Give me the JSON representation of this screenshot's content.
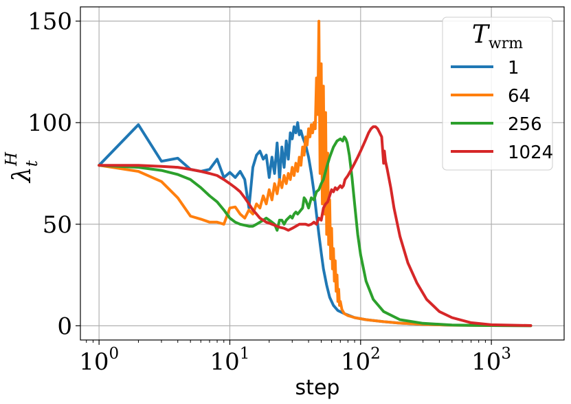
{
  "chart_data": {
    "type": "line",
    "xscale": "log",
    "xlabel": "step",
    "ylabel": "λ",
    "ylabel_sup": "H",
    "ylabel_sub": "t",
    "xlim": [
      0.72,
      3600
    ],
    "ylim": [
      -7,
      157
    ],
    "grid": true,
    "x_ticks": [
      {
        "base": "10",
        "exp": "0",
        "value": 1
      },
      {
        "base": "10",
        "exp": "1",
        "value": 10
      },
      {
        "base": "10",
        "exp": "2",
        "value": 100
      },
      {
        "base": "10",
        "exp": "3",
        "value": 1000
      }
    ],
    "y_ticks": [
      {
        "label": "0",
        "value": 0
      },
      {
        "label": "50",
        "value": 50
      },
      {
        "label": "100",
        "value": 100
      },
      {
        "label": "150",
        "value": 150
      }
    ],
    "legend": {
      "title": "T",
      "title_sub": "wrm",
      "placement": "upper right"
    },
    "series": [
      {
        "name": "1",
        "color": "#1f77b4",
        "points": [
          [
            1,
            79
          ],
          [
            2,
            99
          ],
          [
            3,
            81
          ],
          [
            4,
            82.5
          ],
          [
            5,
            77
          ],
          [
            6,
            76
          ],
          [
            7,
            77
          ],
          [
            8,
            82
          ],
          [
            9,
            73
          ],
          [
            10,
            75.5
          ],
          [
            11,
            73
          ],
          [
            12,
            76
          ],
          [
            13,
            72
          ],
          [
            14,
            58
          ],
          [
            15,
            78
          ],
          [
            16,
            84
          ],
          [
            17,
            86
          ],
          [
            18,
            82
          ],
          [
            19,
            84
          ],
          [
            20,
            73
          ],
          [
            21,
            83
          ],
          [
            22,
            75
          ],
          [
            23,
            90
          ],
          [
            24,
            72
          ],
          [
            25,
            88
          ],
          [
            26,
            78
          ],
          [
            27,
            91
          ],
          [
            28,
            82
          ],
          [
            29,
            95
          ],
          [
            30,
            92
          ],
          [
            31,
            98
          ],
          [
            32,
            95
          ],
          [
            33,
            100
          ],
          [
            34,
            94
          ],
          [
            35,
            96
          ],
          [
            36,
            93
          ],
          [
            38,
            89
          ],
          [
            40,
            83
          ],
          [
            42,
            75
          ],
          [
            44,
            66
          ],
          [
            46,
            55
          ],
          [
            48,
            45
          ],
          [
            50,
            36
          ],
          [
            52,
            28
          ],
          [
            55,
            20
          ],
          [
            58,
            14
          ],
          [
            62,
            10
          ],
          [
            67,
            7.5
          ],
          [
            75,
            6
          ],
          [
            90,
            4
          ],
          [
            110,
            3
          ],
          [
            150,
            2
          ],
          [
            200,
            1.3
          ],
          [
            300,
            0.7
          ],
          [
            500,
            0.3
          ],
          [
            1000,
            0.1
          ],
          [
            2000,
            0.04
          ]
        ]
      },
      {
        "name": "64",
        "color": "#ff7f0e",
        "points": [
          [
            1,
            79
          ],
          [
            2,
            76
          ],
          [
            3,
            71
          ],
          [
            4,
            63
          ],
          [
            5,
            54
          ],
          [
            6,
            52.5
          ],
          [
            7,
            51
          ],
          [
            8,
            51
          ],
          [
            9,
            50
          ],
          [
            10,
            58
          ],
          [
            11,
            58.5
          ],
          [
            12,
            55
          ],
          [
            13,
            53
          ],
          [
            14,
            57
          ],
          [
            15,
            55
          ],
          [
            16,
            60
          ],
          [
            17,
            58
          ],
          [
            18,
            64
          ],
          [
            19,
            60
          ],
          [
            20,
            67
          ],
          [
            21,
            62
          ],
          [
            22,
            70
          ],
          [
            23,
            65
          ],
          [
            24,
            72
          ],
          [
            25,
            68
          ],
          [
            26,
            74
          ],
          [
            27,
            70
          ],
          [
            28,
            75
          ],
          [
            29,
            72
          ],
          [
            30,
            78
          ],
          [
            31,
            74
          ],
          [
            32,
            80
          ],
          [
            33,
            76
          ],
          [
            34,
            83
          ],
          [
            35,
            79
          ],
          [
            36,
            88
          ],
          [
            37,
            84
          ],
          [
            38,
            93
          ],
          [
            39,
            89
          ],
          [
            40,
            97
          ],
          [
            41,
            93
          ],
          [
            42,
            99
          ],
          [
            43,
            95
          ],
          [
            44,
            100
          ],
          [
            45,
            97
          ],
          [
            46,
            122
          ],
          [
            47,
            104
          ],
          [
            48,
            150
          ],
          [
            49,
            75
          ],
          [
            50,
            129
          ],
          [
            51,
            60
          ],
          [
            52,
            118
          ],
          [
            53,
            55
          ],
          [
            54,
            105
          ],
          [
            55,
            45
          ],
          [
            56,
            85
          ],
          [
            57,
            40
          ],
          [
            58,
            62
          ],
          [
            59,
            33
          ],
          [
            60,
            48
          ],
          [
            61,
            28
          ],
          [
            62,
            38
          ],
          [
            63,
            22
          ],
          [
            64,
            32
          ],
          [
            65,
            17
          ],
          [
            66,
            25
          ],
          [
            67,
            12
          ],
          [
            68,
            18
          ],
          [
            69,
            10
          ],
          [
            70,
            12
          ],
          [
            72,
            8
          ],
          [
            75,
            6
          ],
          [
            80,
            5
          ],
          [
            90,
            4
          ],
          [
            110,
            3
          ],
          [
            150,
            2
          ],
          [
            200,
            1.3
          ],
          [
            300,
            0.7
          ],
          [
            500,
            0.3
          ],
          [
            1000,
            0.1
          ],
          [
            2000,
            0.04
          ]
        ]
      },
      {
        "name": "256",
        "color": "#2ca02c",
        "points": [
          [
            1,
            79
          ],
          [
            2,
            78
          ],
          [
            3,
            76.5
          ],
          [
            4,
            74.5
          ],
          [
            5,
            72
          ],
          [
            6,
            68
          ],
          [
            7,
            64
          ],
          [
            8,
            61
          ],
          [
            9,
            57
          ],
          [
            10,
            53
          ],
          [
            11,
            51
          ],
          [
            12,
            50
          ],
          [
            13,
            49.5
          ],
          [
            14,
            49
          ],
          [
            15,
            49
          ],
          [
            16,
            50
          ],
          [
            17,
            51
          ],
          [
            18,
            52
          ],
          [
            19,
            53
          ],
          [
            20,
            52
          ],
          [
            21,
            51
          ],
          [
            22,
            50
          ],
          [
            23,
            47
          ],
          [
            24,
            52
          ],
          [
            25,
            52
          ],
          [
            26,
            50
          ],
          [
            27,
            52
          ],
          [
            28,
            53
          ],
          [
            29,
            54
          ],
          [
            30,
            53
          ],
          [
            31,
            55
          ],
          [
            32,
            56
          ],
          [
            33,
            55
          ],
          [
            34,
            56
          ],
          [
            35,
            57
          ],
          [
            36,
            58
          ],
          [
            37,
            63
          ],
          [
            38,
            62
          ],
          [
            40,
            58
          ],
          [
            42,
            63
          ],
          [
            44,
            62
          ],
          [
            46,
            66
          ],
          [
            48,
            67
          ],
          [
            50,
            70
          ],
          [
            52,
            72
          ],
          [
            55,
            78
          ],
          [
            58,
            83
          ],
          [
            62,
            88
          ],
          [
            66,
            91
          ],
          [
            70,
            92
          ],
          [
            73,
            91
          ],
          [
            75,
            93
          ],
          [
            77,
            92
          ],
          [
            79,
            90
          ],
          [
            82,
            84
          ],
          [
            86,
            73
          ],
          [
            90,
            60
          ],
          [
            95,
            45
          ],
          [
            100,
            35
          ],
          [
            110,
            22
          ],
          [
            125,
            13
          ],
          [
            150,
            7
          ],
          [
            200,
            3
          ],
          [
            300,
            1.2
          ],
          [
            500,
            0.4
          ],
          [
            1000,
            0.1
          ],
          [
            2000,
            0.03
          ]
        ]
      },
      {
        "name": "1024",
        "color": "#d62728",
        "points": [
          [
            1,
            79
          ],
          [
            2,
            79
          ],
          [
            3,
            78.5
          ],
          [
            4,
            78
          ],
          [
            5,
            77
          ],
          [
            6,
            76
          ],
          [
            7,
            75
          ],
          [
            8,
            74
          ],
          [
            9,
            72
          ],
          [
            10,
            70
          ],
          [
            11,
            68
          ],
          [
            12,
            66
          ],
          [
            13,
            63
          ],
          [
            14,
            60
          ],
          [
            15,
            57
          ],
          [
            16,
            55
          ],
          [
            17,
            53
          ],
          [
            18,
            52
          ],
          [
            19,
            51
          ],
          [
            20,
            50.5
          ],
          [
            22,
            49.5
          ],
          [
            24,
            48.5
          ],
          [
            26,
            48
          ],
          [
            28,
            47
          ],
          [
            30,
            48
          ],
          [
            32,
            49
          ],
          [
            34,
            50
          ],
          [
            36,
            50
          ],
          [
            38,
            50
          ],
          [
            40,
            49.5
          ],
          [
            42,
            50
          ],
          [
            44,
            51
          ],
          [
            46,
            50
          ],
          [
            48,
            53
          ],
          [
            50,
            52
          ],
          [
            52,
            58
          ],
          [
            54,
            60
          ],
          [
            56,
            61
          ],
          [
            58,
            64
          ],
          [
            60,
            67
          ],
          [
            62,
            66
          ],
          [
            64,
            68
          ],
          [
            66,
            67
          ],
          [
            68,
            68
          ],
          [
            70,
            69
          ],
          [
            72,
            68
          ],
          [
            74,
            69
          ],
          [
            76,
            72
          ],
          [
            78,
            73
          ],
          [
            80,
            74
          ],
          [
            85,
            77
          ],
          [
            90,
            80
          ],
          [
            95,
            83
          ],
          [
            100,
            86
          ],
          [
            105,
            89
          ],
          [
            110,
            92
          ],
          [
            115,
            95
          ],
          [
            120,
            97
          ],
          [
            125,
            98
          ],
          [
            130,
            98
          ],
          [
            135,
            97
          ],
          [
            140,
            95
          ],
          [
            145,
            93
          ],
          [
            150,
            80
          ],
          [
            152,
            86
          ],
          [
            155,
            81
          ],
          [
            160,
            77
          ],
          [
            170,
            68
          ],
          [
            180,
            58
          ],
          [
            200,
            44
          ],
          [
            230,
            31
          ],
          [
            270,
            21
          ],
          [
            320,
            13
          ],
          [
            400,
            7
          ],
          [
            500,
            4
          ],
          [
            700,
            1.5
          ],
          [
            1000,
            0.5
          ],
          [
            2000,
            0.1
          ]
        ]
      }
    ]
  }
}
